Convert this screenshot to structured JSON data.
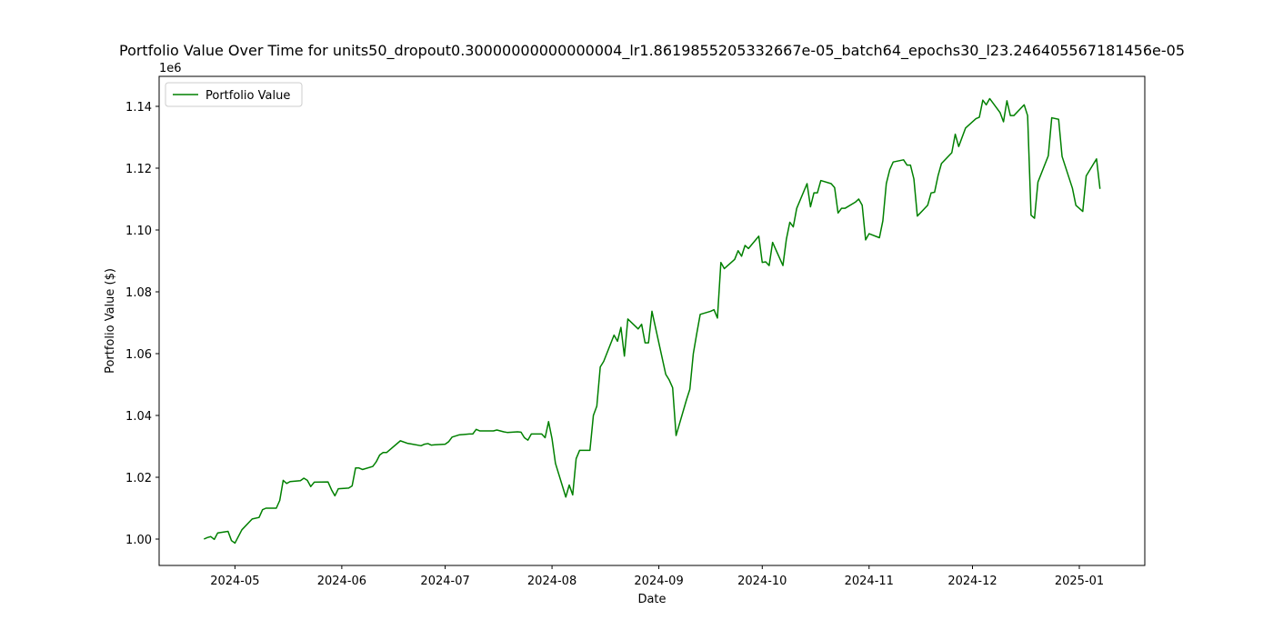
{
  "chart_data": {
    "type": "line",
    "title": "Portfolio Value Over Time for units50_dropout0.30000000000000004_lr1.8619855205332667e-05_batch64_epochs30_l23.246405567181456e-05",
    "x_label": "Date",
    "y_label": "Portfolio Value ($)",
    "y_offset_label": "1e6",
    "legend": "upper left",
    "grid": false,
    "xlim": [
      "2024-04-09",
      "2025-01-20"
    ],
    "xticks": [
      {
        "value": "2024-05-01",
        "label": "2024-05"
      },
      {
        "value": "2024-06-01",
        "label": "2024-06"
      },
      {
        "value": "2024-07-01",
        "label": "2024-07"
      },
      {
        "value": "2024-08-01",
        "label": "2024-08"
      },
      {
        "value": "2024-09-01",
        "label": "2024-09"
      },
      {
        "value": "2024-10-01",
        "label": "2024-10"
      },
      {
        "value": "2024-11-01",
        "label": "2024-11"
      },
      {
        "value": "2024-12-01",
        "label": "2024-12"
      },
      {
        "value": "2025-01-01",
        "label": "2025-01"
      }
    ],
    "ylim": [
      991470,
      1149700
    ],
    "yticks": [
      {
        "value": 1000000,
        "label": "1.00"
      },
      {
        "value": 1020000,
        "label": "1.02"
      },
      {
        "value": 1040000,
        "label": "1.04"
      },
      {
        "value": 1060000,
        "label": "1.06"
      },
      {
        "value": 1080000,
        "label": "1.08"
      },
      {
        "value": 1100000,
        "label": "1.10"
      },
      {
        "value": 1120000,
        "label": "1.12"
      },
      {
        "value": 1140000,
        "label": "1.14"
      }
    ],
    "x": [
      "2024-04-22",
      "2024-04-23",
      "2024-04-24",
      "2024-04-25",
      "2024-04-26",
      "2024-04-29",
      "2024-04-30",
      "2024-05-01",
      "2024-05-03",
      "2024-05-06",
      "2024-05-08",
      "2024-05-09",
      "2024-05-10",
      "2024-05-13",
      "2024-05-14",
      "2024-05-15",
      "2024-05-16",
      "2024-05-17",
      "2024-05-20",
      "2024-05-21",
      "2024-05-22",
      "2024-05-23",
      "2024-05-24",
      "2024-05-28",
      "2024-05-29",
      "2024-05-30",
      "2024-05-31",
      "2024-06-03",
      "2024-06-04",
      "2024-06-05",
      "2024-06-06",
      "2024-06-07",
      "2024-06-10",
      "2024-06-11",
      "2024-06-12",
      "2024-06-13",
      "2024-06-14",
      "2024-06-18",
      "2024-06-20",
      "2024-06-21",
      "2024-06-24",
      "2024-06-25",
      "2024-06-26",
      "2024-06-27",
      "2024-06-28",
      "2024-07-01",
      "2024-07-02",
      "2024-07-03",
      "2024-07-05",
      "2024-07-08",
      "2024-07-09",
      "2024-07-10",
      "2024-07-11",
      "2024-07-12",
      "2024-07-15",
      "2024-07-16",
      "2024-07-17",
      "2024-07-18",
      "2024-07-19",
      "2024-07-22",
      "2024-07-23",
      "2024-07-24",
      "2024-07-25",
      "2024-07-26",
      "2024-07-29",
      "2024-07-30",
      "2024-07-31",
      "2024-08-01",
      "2024-08-02",
      "2024-08-05",
      "2024-08-06",
      "2024-08-07",
      "2024-08-08",
      "2024-08-09",
      "2024-08-12",
      "2024-08-13",
      "2024-08-14",
      "2024-08-15",
      "2024-08-16",
      "2024-08-19",
      "2024-08-20",
      "2024-08-21",
      "2024-08-22",
      "2024-08-23",
      "2024-08-26",
      "2024-08-27",
      "2024-08-28",
      "2024-08-29",
      "2024-08-30",
      "2024-09-03",
      "2024-09-04",
      "2024-09-05",
      "2024-09-06",
      "2024-09-09",
      "2024-09-10",
      "2024-09-11",
      "2024-09-12",
      "2024-09-13",
      "2024-09-16",
      "2024-09-17",
      "2024-09-18",
      "2024-09-19",
      "2024-09-20",
      "2024-09-23",
      "2024-09-24",
      "2024-09-25",
      "2024-09-26",
      "2024-09-27",
      "2024-09-30",
      "2024-10-01",
      "2024-10-02",
      "2024-10-03",
      "2024-10-04",
      "2024-10-07",
      "2024-10-08",
      "2024-10-09",
      "2024-10-10",
      "2024-10-11",
      "2024-10-14",
      "2024-10-15",
      "2024-10-16",
      "2024-10-17",
      "2024-10-18",
      "2024-10-21",
      "2024-10-22",
      "2024-10-23",
      "2024-10-24",
      "2024-10-25",
      "2024-10-28",
      "2024-10-29",
      "2024-10-30",
      "2024-10-31",
      "2024-11-01",
      "2024-11-04",
      "2024-11-05",
      "2024-11-06",
      "2024-11-07",
      "2024-11-08",
      "2024-11-11",
      "2024-11-12",
      "2024-11-13",
      "2024-11-14",
      "2024-11-15",
      "2024-11-18",
      "2024-11-19",
      "2024-11-20",
      "2024-11-21",
      "2024-11-22",
      "2024-11-25",
      "2024-11-26",
      "2024-11-27",
      "2024-11-29",
      "2024-12-02",
      "2024-12-03",
      "2024-12-04",
      "2024-12-05",
      "2024-12-06",
      "2024-12-09",
      "2024-12-10",
      "2024-12-11",
      "2024-12-12",
      "2024-12-13",
      "2024-12-16",
      "2024-12-17",
      "2024-12-18",
      "2024-12-19",
      "2024-12-20",
      "2024-12-23",
      "2024-12-24",
      "2024-12-26",
      "2024-12-27",
      "2024-12-30",
      "2024-12-31",
      "2025-01-02",
      "2025-01-03",
      "2025-01-06",
      "2025-01-07"
    ],
    "series": [
      {
        "name": "Portfolio Value",
        "color": "#008000",
        "values": [
          1000000,
          1000500,
          1000800,
          999900,
          1002000,
          1002500,
          999500,
          998700,
          1003000,
          1006500,
          1007000,
          1009500,
          1010000,
          1010000,
          1012500,
          1019000,
          1018000,
          1018600,
          1018900,
          1019700,
          1019000,
          1017000,
          1018400,
          1018500,
          1016000,
          1014000,
          1016300,
          1016500,
          1017200,
          1023000,
          1023000,
          1022500,
          1023500,
          1025000,
          1027200,
          1028000,
          1028000,
          1031800,
          1031000,
          1030800,
          1030200,
          1030700,
          1030900,
          1030400,
          1030500,
          1030700,
          1031500,
          1033000,
          1033700,
          1034000,
          1034000,
          1035500,
          1035000,
          1035000,
          1035000,
          1035300,
          1035000,
          1034700,
          1034500,
          1034700,
          1034600,
          1032800,
          1032000,
          1034000,
          1034000,
          1032800,
          1038000,
          1032500,
          1024500,
          1013600,
          1017500,
          1014300,
          1026000,
          1028700,
          1028700,
          1040000,
          1043000,
          1055700,
          1057500,
          1066000,
          1064000,
          1068500,
          1059200,
          1071200,
          1068000,
          1069500,
          1063500,
          1063500,
          1073700,
          1053300,
          1051500,
          1049000,
          1033500,
          1045000,
          1048500,
          1060000,
          1066500,
          1072700,
          1073700,
          1074200,
          1071500,
          1089500,
          1087500,
          1090500,
          1093300,
          1091500,
          1095000,
          1094000,
          1098000,
          1089500,
          1089700,
          1088500,
          1096000,
          1088500,
          1097000,
          1102500,
          1101000,
          1107000,
          1115000,
          1107500,
          1112000,
          1112000,
          1116000,
          1115000,
          1113700,
          1105500,
          1107000,
          1107000,
          1109000,
          1110000,
          1108000,
          1096800,
          1098800,
          1097500,
          1103000,
          1115000,
          1119500,
          1122000,
          1122700,
          1121000,
          1121000,
          1116500,
          1104500,
          1108000,
          1112000,
          1112200,
          1117500,
          1121500,
          1125000,
          1131000,
          1127000,
          1133000,
          1136000,
          1136500,
          1142000,
          1140500,
          1142500,
          1138000,
          1135000,
          1141800,
          1137000,
          1137000,
          1140500,
          1137000,
          1104800,
          1103800,
          1115500,
          1124000,
          1136300,
          1135800,
          1123800,
          1113500,
          1108000,
          1106000,
          1117500,
          1123000,
          1113300
        ]
      }
    ]
  }
}
